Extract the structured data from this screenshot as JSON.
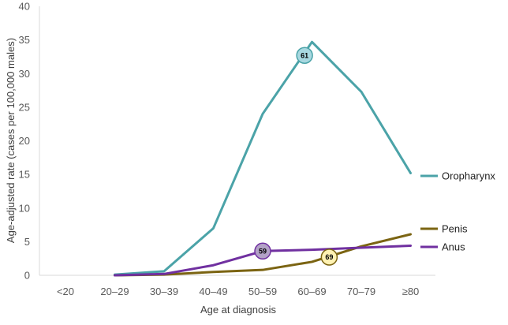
{
  "chart_data": {
    "type": "line",
    "title": "",
    "xlabel": "Age at diagnosis",
    "ylabel": "Age-adjusted rate (cases per 100,000 males)",
    "categories": [
      "<20",
      "20–29",
      "30–39",
      "40–49",
      "50–59",
      "60–69",
      "70–79",
      "≥80"
    ],
    "ylim": [
      0,
      40
    ],
    "yticks": [
      0,
      5,
      10,
      15,
      20,
      25,
      30,
      35,
      40
    ],
    "grid": false,
    "legend": "right, inline labels at line ends",
    "series": [
      {
        "name": "Oropharynx",
        "color": "#4BA3A8",
        "values": [
          null,
          0.1,
          0.6,
          7.0,
          24.0,
          34.7,
          27.3,
          15.2
        ]
      },
      {
        "name": "Penis",
        "color": "#7B6412",
        "values": [
          null,
          0.0,
          0.1,
          0.5,
          0.8,
          2.0,
          4.3,
          6.1
        ]
      },
      {
        "name": "Anus",
        "color": "#7030A0",
        "values": [
          null,
          0.0,
          0.2,
          1.5,
          3.6,
          3.8,
          4.1,
          4.4
        ]
      }
    ],
    "annotations": [
      {
        "label": "61",
        "series": "Oropharynx",
        "x_position": 4.85,
        "y": 32.7,
        "fill": "#A8D8E0",
        "stroke": "#4BA3A8"
      },
      {
        "label": "59",
        "series": "Anus",
        "x_position": 4.0,
        "y": 3.6,
        "fill": "#B3A2C7",
        "stroke": "#7030A0"
      },
      {
        "label": "69",
        "series": "Penis",
        "x_position": 5.35,
        "y": 2.7,
        "fill": "#FFF2B3",
        "stroke": "#7B6412"
      }
    ]
  }
}
